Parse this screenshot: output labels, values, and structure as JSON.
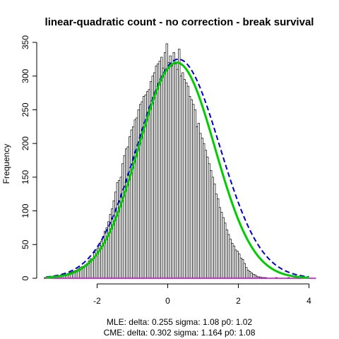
{
  "chart_data": {
    "type": "histogram",
    "title": "linear-quadratic count - no correction - break survival",
    "xlabel": "",
    "ylabel": "Frequency",
    "xlim": [
      -3.55,
      4.25
    ],
    "ylim": [
      0,
      350
    ],
    "x_ticks": [
      -2,
      0,
      2,
      4
    ],
    "y_ticks": [
      0,
      50,
      100,
      150,
      200,
      250,
      300,
      350
    ],
    "bin_width": 0.05,
    "bins": {
      "start": -3.5,
      "counts": [
        1,
        1,
        2,
        2,
        3,
        3,
        2,
        4,
        3,
        5,
        4,
        6,
        5,
        7,
        8,
        9,
        10,
        11,
        12,
        14,
        16,
        17,
        18,
        20,
        22,
        26,
        29,
        28,
        38,
        42,
        45,
        49,
        55,
        62,
        70,
        75,
        84,
        95,
        103,
        115,
        128,
        142,
        145,
        150,
        170,
        182,
        192,
        195,
        210,
        220,
        225,
        235,
        238,
        250,
        258,
        262,
        270,
        272,
        277,
        280,
        292,
        300,
        305,
        315,
        318,
        322,
        328,
        312,
        335,
        348,
        320,
        330,
        315,
        335,
        318,
        310,
        340,
        300,
        305,
        295,
        290,
        285,
        270,
        265,
        258,
        250,
        225,
        230,
        215,
        208,
        200,
        190,
        180,
        170,
        160,
        150,
        140,
        125,
        118,
        105,
        98,
        90,
        82,
        72,
        65,
        58,
        52,
        48,
        42,
        40,
        36,
        30,
        28,
        22,
        16,
        12,
        10,
        8,
        6,
        5,
        3,
        2,
        2,
        1,
        1,
        1,
        0,
        0,
        0,
        0,
        0,
        1,
        0,
        0,
        0,
        0,
        0,
        0,
        1,
        0,
        0,
        0,
        0,
        0,
        0,
        0,
        0,
        0,
        0,
        0,
        0,
        0,
        0,
        0
      ]
    },
    "series": [
      {
        "name": "MLE",
        "style": "solid",
        "color": "#00cc00",
        "delta": 0.255,
        "sigma": 1.08,
        "peak": 320
      },
      {
        "name": "CME",
        "style": "dashed",
        "color": "#0000cc",
        "delta": 0.302,
        "sigma": 1.164,
        "peak": 325
      }
    ],
    "baseline_color": "#cc00cc",
    "notes": [
      "MLE: delta: 0.255 sigma: 1.08 p0: 1.02",
      "CME: delta: 0.302 sigma: 1.164 p0: 1.08"
    ]
  }
}
